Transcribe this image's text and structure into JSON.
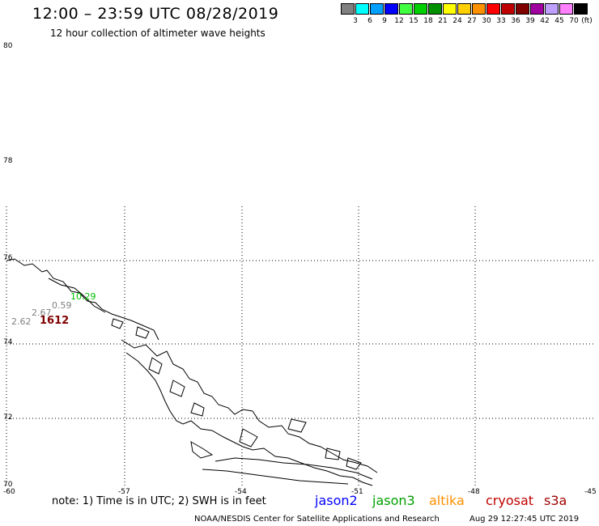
{
  "title": "12:00 – 23:59 UTC 08/28/2019",
  "subtitle": "12 hour collection of altimeter wave heights",
  "legend": {
    "swatches": [
      {
        "color": "#808080",
        "label": "3"
      },
      {
        "color": "#00ffff",
        "label": "6"
      },
      {
        "color": "#00a0ff",
        "label": "9"
      },
      {
        "color": "#0000ff",
        "label": "12"
      },
      {
        "color": "#40ff40",
        "label": "15"
      },
      {
        "color": "#00d000",
        "label": "18"
      },
      {
        "color": "#009000",
        "label": "21"
      },
      {
        "color": "#ffff00",
        "label": "24"
      },
      {
        "color": "#ffd000",
        "label": "27"
      },
      {
        "color": "#ff9000",
        "label": "30"
      },
      {
        "color": "#ff0000",
        "label": "33"
      },
      {
        "color": "#c00000",
        "label": "36"
      },
      {
        "color": "#800000",
        "label": "39"
      },
      {
        "color": "#a000a0",
        "label": "42"
      },
      {
        "color": "#c0a0ff",
        "label": "45"
      },
      {
        "color": "#ff80ff",
        "label": "70"
      },
      {
        "color": "#000000",
        "label": ""
      }
    ],
    "unit": "(ft)"
  },
  "axes": {
    "lat_labels": [
      "80",
      "78",
      "76",
      "74",
      "72",
      "70"
    ],
    "lon_labels": [
      "-60",
      "-57",
      "-54",
      "-51",
      "-48",
      "-45"
    ]
  },
  "wave_heights": [
    {
      "value": "10.29",
      "color": "#00c000"
    },
    {
      "value": "0.59",
      "color": "#808080"
    },
    {
      "value": "2.67",
      "color": "#808080"
    },
    {
      "value": "2.62",
      "color": "#808080"
    },
    {
      "value": "1612",
      "color": "#800000"
    }
  ],
  "footer": {
    "note": "note: 1) Time is in UTC; 2) SWH is in feet",
    "satellites": [
      {
        "name": "jason2",
        "color": "#0000ff"
      },
      {
        "name": "jason3",
        "color": "#00a000"
      },
      {
        "name": "altika",
        "color": "#ff9000"
      },
      {
        "name": "cryosat",
        "color": "#c00000"
      },
      {
        "name": "s3a",
        "color": "#a00000"
      }
    ],
    "credit": "NOAA/NESDIS Center for Satellite Applications and Research",
    "timestamp": "Aug 29 12:27:45 UTC 2019"
  }
}
